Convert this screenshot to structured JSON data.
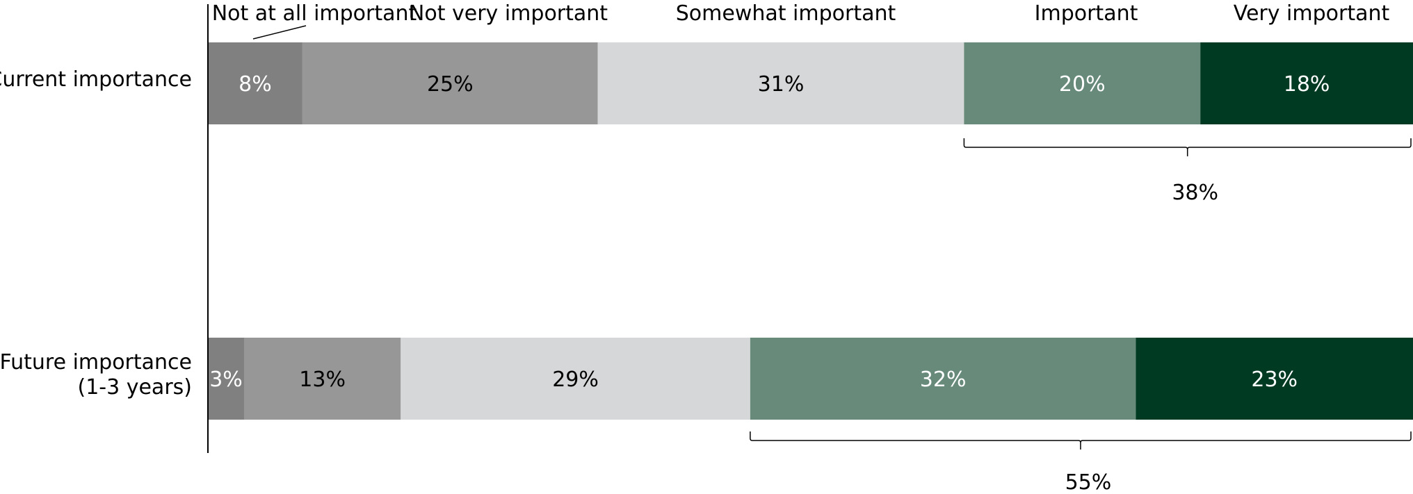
{
  "chart_data": {
    "type": "bar",
    "orientation": "horizontal",
    "stacked": true,
    "categories": [
      "Current importance",
      "Future importance (1-3 years)"
    ],
    "category_lines": [
      [
        "Current importance"
      ],
      [
        "Future importance",
        "(1-3 years)"
      ]
    ],
    "series": [
      {
        "name": "Not at all important",
        "color": "#808080",
        "label_color": "#ffffff",
        "values": [
          8,
          3
        ]
      },
      {
        "name": "Not very important",
        "color": "#979797",
        "label_color": "#000000",
        "values": [
          25,
          13
        ]
      },
      {
        "name": "Somewhat important",
        "color": "#d6d7d8",
        "label_color": "#000000",
        "values": [
          31,
          29
        ]
      },
      {
        "name": "Important",
        "color": "#678a7b",
        "label_color": "#ffffff",
        "values": [
          20,
          32
        ]
      },
      {
        "name": "Very important",
        "color": "#003a22",
        "label_color": "#ffffff",
        "values": [
          18,
          23
        ]
      }
    ],
    "value_labels": [
      [
        "8%",
        "25%",
        "31%",
        "20%",
        "18%"
      ],
      [
        "3%",
        "13%",
        "29%",
        "32%",
        "23%"
      ]
    ],
    "bracket_totals": [
      {
        "label": "38%",
        "series": [
          "Important",
          "Very important"
        ]
      },
      {
        "label": "55%",
        "series": [
          "Important",
          "Very important"
        ]
      }
    ],
    "legend_position": "top",
    "grid": false
  }
}
